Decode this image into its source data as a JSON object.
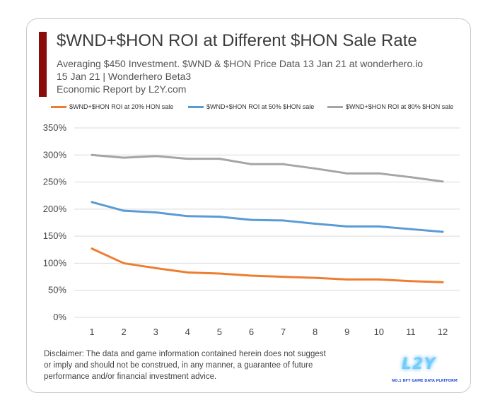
{
  "header": {
    "title": "$WND+$HON ROI at Different $HON Sale Rate",
    "subtitle_line1": "Averaging $450 Investment. $WND & $HON Price Data 13 Jan 21 at wonderhero.io",
    "subtitle_line2": "15 Jan 21 | Wonderhero Beta3",
    "subtitle_line3": "Economic Report by L2Y.com",
    "accent_color": "#8b0a0a"
  },
  "footer": {
    "disclaimer": "Disclaimer: The data and game information contained herein does not suggest or imply and should not be construed, in any manner, a guarantee of future performance and/or financial investment advice.",
    "logo_text": "L2Y",
    "logo_tagline": "NO.1 NFT GAME DATA PLATFORM"
  },
  "chart_data": {
    "type": "line",
    "title": "$WND+$HON ROI at Different $HON Sale Rate",
    "xlabel": "",
    "ylabel": "",
    "x": [
      1,
      2,
      3,
      4,
      5,
      6,
      7,
      8,
      9,
      10,
      11,
      12
    ],
    "ylim": [
      0,
      350
    ],
    "yticks": [
      0,
      50,
      100,
      150,
      200,
      250,
      300,
      350
    ],
    "ytick_labels": [
      "0%",
      "50%",
      "100%",
      "150%",
      "200%",
      "250%",
      "300%",
      "350%"
    ],
    "grid": true,
    "legend_position": "top",
    "series": [
      {
        "name": "$WND+$HON ROI at 20% HON sale",
        "color": "#ed7d31",
        "values": [
          127,
          100,
          91,
          83,
          81,
          77,
          75,
          73,
          70,
          70,
          67,
          65
        ]
      },
      {
        "name": "$WND+$HON ROI at 50% $HON sale",
        "color": "#5b9bd5",
        "values": [
          213,
          197,
          194,
          187,
          186,
          180,
          179,
          173,
          168,
          168,
          163,
          158
        ]
      },
      {
        "name": "$WND+$HON ROI at 80% $HON sale",
        "color": "#a5a5a5",
        "values": [
          300,
          295,
          298,
          293,
          293,
          283,
          283,
          275,
          266,
          266,
          259,
          251
        ]
      }
    ]
  }
}
